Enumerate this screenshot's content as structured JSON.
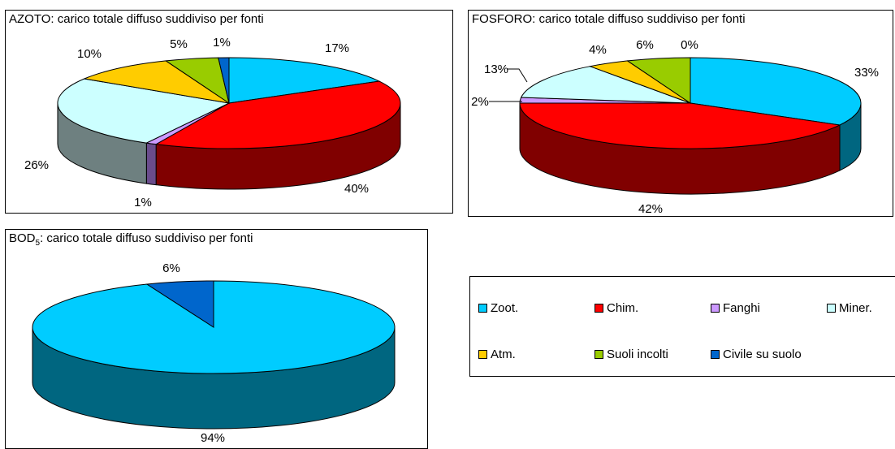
{
  "chart_data": [
    {
      "type": "pie",
      "title": "AZOTO: carico totale diffuso suddiviso per fonti",
      "categories": [
        "Zoot.",
        "Chim.",
        "Fanghi",
        "Miner.",
        "Atm.",
        "Suoli incolti",
        "Civile su suolo"
      ],
      "values": [
        17,
        40,
        1,
        26,
        10,
        5,
        1
      ],
      "labels": [
        "17%",
        "40%",
        "1%",
        "26%",
        "10%",
        "5%",
        "1%"
      ]
    },
    {
      "type": "pie",
      "title": "FOSFORO: carico totale diffuso suddiviso per fonti",
      "categories": [
        "Zoot.",
        "Chim.",
        "Fanghi",
        "Miner.",
        "Atm.",
        "Suoli incolti",
        "Civile su suolo"
      ],
      "values": [
        33,
        42,
        2,
        13,
        4,
        6,
        0
      ],
      "labels": [
        "33%",
        "42%",
        "2%",
        "13%",
        "4%",
        "6%",
        "0%"
      ]
    },
    {
      "type": "pie",
      "title_main": "BOD",
      "title_sub": "5",
      "title_rest": ": carico totale diffuso suddiviso per fonti",
      "categories": [
        "Zoot.",
        "Civile su suolo"
      ],
      "values": [
        94,
        6
      ],
      "labels": [
        "94%",
        "6%"
      ]
    }
  ],
  "legend": [
    {
      "label": "Zoot.",
      "color": "#00ccff"
    },
    {
      "label": "Chim.",
      "color": "#ff0000"
    },
    {
      "label": "Fanghi",
      "color": "#cc99ff"
    },
    {
      "label": "Miner.",
      "color": "#ccffff"
    },
    {
      "label": "Atm.",
      "color": "#ffcc00"
    },
    {
      "label": "Suoli incolti",
      "color": "#99cc00"
    },
    {
      "label": "Civile su suolo",
      "color": "#0066cc"
    }
  ],
  "colors": {
    "Zoot.": "#00ccff",
    "Chim.": "#ff0000",
    "Fanghi": "#cc99ff",
    "Miner.": "#ccffff",
    "Atm.": "#ffcc00",
    "Suoli incolti": "#99cc00",
    "Civile su suolo": "#0066cc"
  },
  "side_colors": {
    "Zoot.": "#006680",
    "Chim.": "#800000",
    "Fanghi": "#6a4c8c",
    "Miner.": "#6e8080",
    "Atm.": "#806600",
    "Suoli incolti": "#4d6600",
    "Civile su suolo": "#003366"
  }
}
